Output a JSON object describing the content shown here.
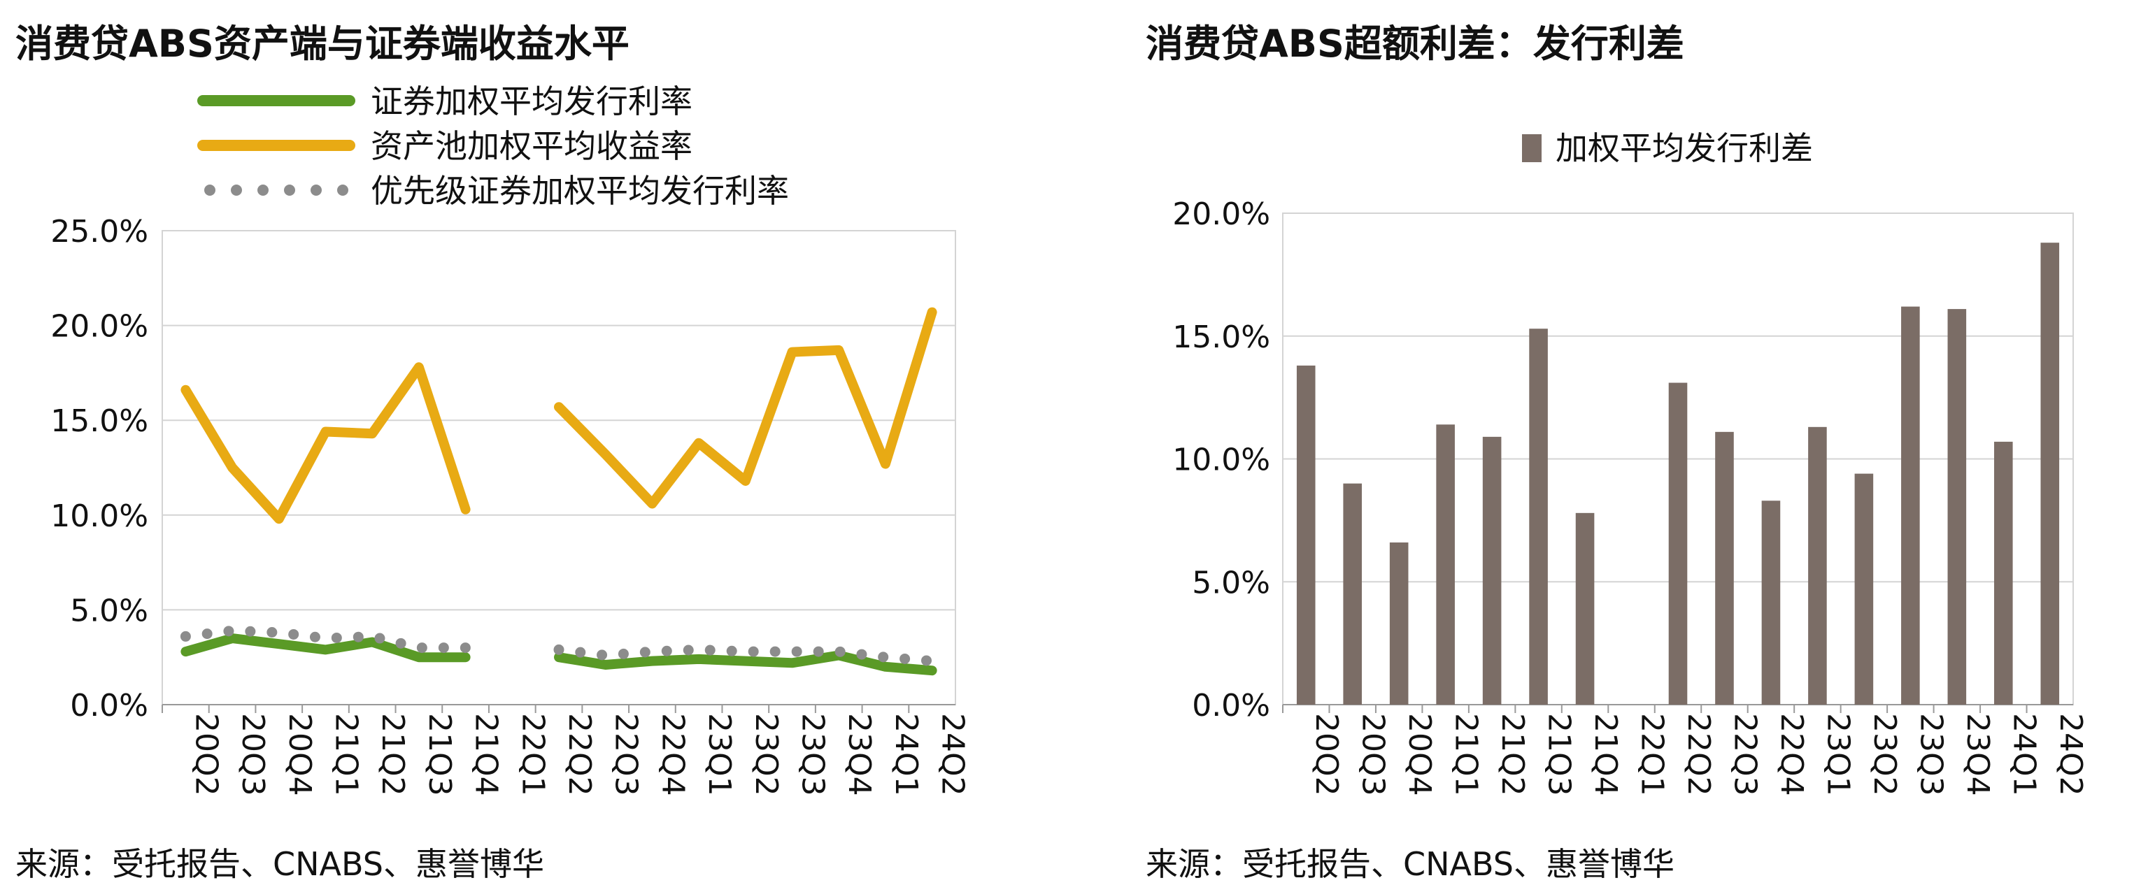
{
  "left": {
    "title": "消费贷ABS资产端与证券端收益水平",
    "source": "来源：受托报告、CNABS、惠誉博华"
  },
  "right": {
    "title": "消费贷ABS超额利差：发行利差",
    "source": "来源：受托报告、CNABS、惠誉博华"
  },
  "chart_data": [
    {
      "type": "line",
      "title": "消费贷ABS资产端与证券端收益水平",
      "categories": [
        "20Q2",
        "20Q3",
        "20Q4",
        "21Q1",
        "21Q2",
        "21Q3",
        "21Q4",
        "22Q1",
        "22Q2",
        "22Q3",
        "22Q4",
        "23Q1",
        "23Q2",
        "23Q3",
        "23Q4",
        "24Q1",
        "24Q2"
      ],
      "yticks": [
        "0.0%",
        "5.0%",
        "10.0%",
        "15.0%",
        "20.0%",
        "25.0%"
      ],
      "ylim": [
        0,
        25
      ],
      "grid": true,
      "legend": "top",
      "series": [
        {
          "name": "证券加权平均发行利率",
          "style": "solid",
          "color": "#5a9a26",
          "values": [
            2.8,
            3.5,
            3.2,
            2.9,
            3.3,
            2.5,
            2.5,
            null,
            2.5,
            2.1,
            2.3,
            2.4,
            2.3,
            2.2,
            2.6,
            2.0,
            1.8
          ]
        },
        {
          "name": "资产池加权平均收益率",
          "style": "solid",
          "color": "#e8aa14",
          "values": [
            16.6,
            12.5,
            9.8,
            14.4,
            14.3,
            17.8,
            10.3,
            null,
            15.7,
            13.2,
            10.6,
            13.8,
            11.8,
            18.6,
            18.7,
            12.7,
            20.7
          ]
        },
        {
          "name": "优先级证券加权平均发行利率",
          "style": "dotted",
          "color": "#8c8c8c",
          "values": [
            3.6,
            3.9,
            3.8,
            3.5,
            3.6,
            3.0,
            3.0,
            null,
            2.9,
            2.6,
            2.8,
            2.9,
            2.8,
            2.8,
            2.8,
            2.5,
            2.3
          ]
        }
      ]
    },
    {
      "type": "bar",
      "title": "消费贷ABS超额利差：发行利差",
      "categories": [
        "20Q2",
        "20Q3",
        "20Q4",
        "21Q1",
        "21Q2",
        "21Q3",
        "21Q4",
        "22Q1",
        "22Q2",
        "22Q3",
        "22Q4",
        "23Q1",
        "23Q2",
        "23Q3",
        "23Q4",
        "24Q1",
        "24Q2"
      ],
      "yticks": [
        "0.0%",
        "5.0%",
        "10.0%",
        "15.0%",
        "20.0%"
      ],
      "ylim": [
        0,
        20
      ],
      "grid": true,
      "legend": "top",
      "series": [
        {
          "name": "加权平均发行利差",
          "color": "#7b6d66",
          "values": [
            13.8,
            9.0,
            6.6,
            11.4,
            10.9,
            15.3,
            7.8,
            null,
            13.1,
            11.1,
            8.3,
            11.3,
            9.4,
            16.2,
            16.1,
            10.7,
            18.8
          ]
        }
      ]
    }
  ]
}
